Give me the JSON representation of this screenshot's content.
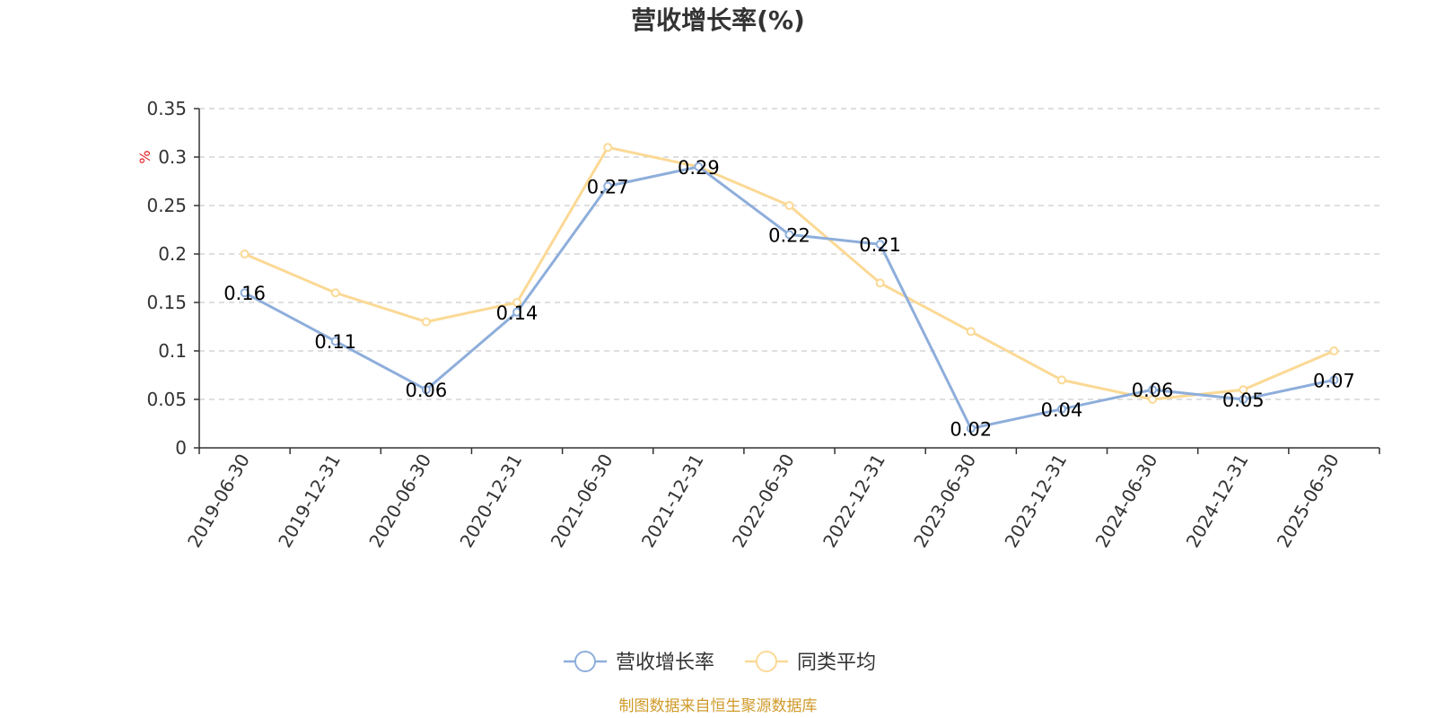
{
  "colors": {
    "series1": "#8eaedb",
    "series2": "#fbd995",
    "axis": "#333333",
    "grid": "#cccccc",
    "unit": "#e02020",
    "source": "#d09a2a"
  },
  "chart_data": {
    "type": "line",
    "title": "营收增长率(%)",
    "ylabel": "%",
    "ylim": [
      0,
      0.35
    ],
    "yticks": [
      0,
      0.05,
      0.1,
      0.15,
      0.2,
      0.25,
      0.3,
      0.35
    ],
    "ytick_labels": [
      "0",
      "0.05",
      "0.1",
      "0.15",
      "0.2",
      "0.25",
      "0.3",
      "0.35"
    ],
    "grid": "horizontal-dashed",
    "legend_position": "bottom",
    "categories": [
      "2019-06-30",
      "2019-12-31",
      "2020-06-30",
      "2020-12-31",
      "2021-06-30",
      "2021-12-31",
      "2022-06-30",
      "2022-12-31",
      "2023-06-30",
      "2023-12-31",
      "2024-06-30",
      "2024-12-31",
      "2025-06-30"
    ],
    "series": [
      {
        "name": "营收增长率",
        "values": [
          0.16,
          0.11,
          0.06,
          0.14,
          0.27,
          0.29,
          0.22,
          0.21,
          0.02,
          0.04,
          0.06,
          0.05,
          0.07
        ],
        "labels": [
          "0.16",
          "0.11",
          "0.06",
          "0.14",
          "0.27",
          "0.29",
          "0.22",
          "0.21",
          "0.02",
          "0.04",
          "0.06",
          "0.05",
          "0.07"
        ]
      },
      {
        "name": "同类平均",
        "values": [
          0.2,
          0.16,
          0.13,
          0.15,
          0.31,
          0.29,
          0.25,
          0.17,
          0.12,
          0.07,
          0.05,
          0.06,
          0.1
        ]
      }
    ],
    "source": "制图数据来自恒生聚源数据库"
  }
}
